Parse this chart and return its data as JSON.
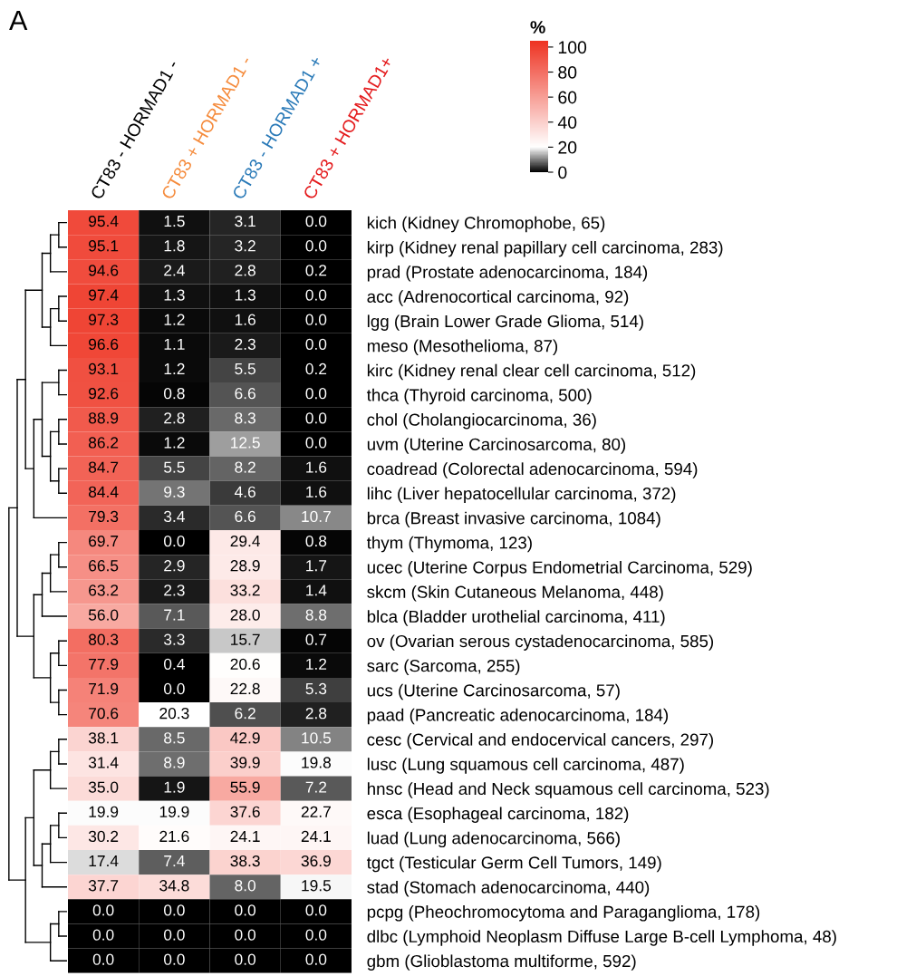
{
  "chart_data": {
    "type": "heatmap",
    "clabel": "%",
    "categories": [
      "CT83 - HORMAD1 -",
      "CT83 + HORMAD1 -",
      "CT83 - HORMAD1 +",
      "CT83 + HORMAD1+"
    ],
    "colors": [
      "#000000",
      "#f58b3c",
      "#2a7ab8",
      "#e41a1c"
    ],
    "y_categories": [
      "kich (Kidney Chromophobe, 65)",
      "kirp (Kidney renal papillary cell carcinoma, 283)",
      "prad (Prostate adenocarcinoma, 184)",
      "acc (Adrenocortical carcinoma, 92)",
      "lgg (Brain Lower Grade Glioma, 514)",
      "meso (Mesothelioma, 87)",
      "kirc (Kidney renal clear cell carcinoma, 512)",
      "thca (Thyroid carcinoma, 500)",
      "chol (Cholangiocarcinoma, 36)",
      "uvm (Uterine Carcinosarcoma, 80)",
      "coadread (Colorectal adenocarcinoma, 594)",
      "lihc (Liver hepatocellular carcinoma, 372)",
      "brca (Breast invasive carcinoma, 1084)",
      "thym (Thymoma, 123)",
      "ucec (Uterine Corpus Endometrial Carcinoma, 529)",
      "skcm (Skin Cutaneous Melanoma, 448)",
      "blca (Bladder urothelial carcinoma, 411)",
      "ov (Ovarian serous cystadenocarcinoma, 585)",
      "sarc (Sarcoma, 255)",
      "ucs (Uterine Carcinosarcoma, 57)",
      "paad (Pancreatic adenocarcinoma, 184)",
      "cesc (Cervical and endocervical cancers, 297)",
      "lusc (Lung squamous cell carcinoma, 487)",
      "hnsc (Head and Neck squamous cell carcinoma, 523)",
      "esca (Esophageal carcinoma, 182)",
      "luad (Lung adenocarcinoma, 566)",
      "tgct (Testicular Germ Cell Tumors, 149)",
      "stad (Stomach adenocarcinoma, 440)",
      "pcpg (Pheochromocytoma and Paraganglioma, 178)",
      "dlbc (Lymphoid Neoplasm Diffuse Large B-cell Lymphoma, 48)",
      "gbm (Glioblastoma multiforme, 592)"
    ],
    "cells": [
      [
        95.4,
        1.5,
        3.1,
        0.0
      ],
      [
        95.1,
        1.8,
        3.2,
        0.0
      ],
      [
        94.6,
        2.4,
        2.8,
        0.2
      ],
      [
        97.4,
        1.3,
        1.3,
        0.0
      ],
      [
        97.3,
        1.2,
        1.6,
        0.0
      ],
      [
        96.6,
        1.1,
        2.3,
        0.0
      ],
      [
        93.1,
        1.2,
        5.5,
        0.2
      ],
      [
        92.6,
        0.8,
        6.6,
        0.0
      ],
      [
        88.9,
        2.8,
        8.3,
        0.0
      ],
      [
        86.2,
        1.2,
        12.5,
        0.0
      ],
      [
        84.7,
        5.5,
        8.2,
        1.6
      ],
      [
        84.4,
        9.3,
        4.6,
        1.6
      ],
      [
        79.3,
        3.4,
        6.6,
        10.7
      ],
      [
        69.7,
        0.0,
        29.4,
        0.8
      ],
      [
        66.5,
        2.9,
        28.9,
        1.7
      ],
      [
        63.2,
        2.3,
        33.2,
        1.4
      ],
      [
        56.0,
        7.1,
        28.0,
        8.8
      ],
      [
        80.3,
        3.3,
        15.7,
        0.7
      ],
      [
        77.9,
        0.4,
        20.6,
        1.2
      ],
      [
        71.9,
        0.0,
        22.8,
        5.3
      ],
      [
        70.6,
        20.3,
        6.2,
        2.8
      ],
      [
        38.1,
        8.5,
        42.9,
        10.5
      ],
      [
        31.4,
        8.9,
        39.9,
        19.8
      ],
      [
        35.0,
        1.9,
        55.9,
        7.2
      ],
      [
        19.9,
        19.9,
        37.6,
        22.7
      ],
      [
        30.2,
        21.6,
        24.1,
        24.1
      ],
      [
        17.4,
        7.4,
        38.3,
        36.9
      ],
      [
        37.7,
        34.8,
        8.0,
        19.5
      ],
      [
        0.0,
        0.0,
        0.0,
        0.0
      ],
      [
        0.0,
        0.0,
        0.0,
        0.0
      ],
      [
        0.0,
        0.0,
        0.0,
        0.0
      ]
    ],
    "cell_labels": [
      [
        "95.4",
        "1.5",
        "3.1",
        "0.0"
      ],
      [
        "95.1",
        "1.8",
        "3.2",
        "0.0"
      ],
      [
        "94.6",
        "2.4",
        "2.8",
        "0.2"
      ],
      [
        "97.4",
        "1.3",
        "1.3",
        "0.0"
      ],
      [
        "97.3",
        "1.2",
        "1.6",
        "0.0"
      ],
      [
        "96.6",
        "1.1",
        "2.3",
        "0.0"
      ],
      [
        "93.1",
        "1.2",
        "5.5",
        "0.2"
      ],
      [
        "92.6",
        "0.8",
        "6.6",
        "0.0"
      ],
      [
        "88.9",
        "2.8",
        "8.3",
        "0.0"
      ],
      [
        "86.2",
        "1.2",
        "12.5",
        "0.0"
      ],
      [
        "84.7",
        "5.5",
        "8.2",
        "1.6"
      ],
      [
        "84.4",
        "9.3",
        "4.6",
        "1.6"
      ],
      [
        "79.3",
        "3.4",
        "6.6",
        "10.7"
      ],
      [
        "69.7",
        "0.0",
        "29.4",
        "0.8"
      ],
      [
        "66.5",
        "2.9",
        "28.9",
        "1.7"
      ],
      [
        "63.2",
        "2.3",
        "33.2",
        "1.4"
      ],
      [
        "56.0",
        "7.1",
        "28.0",
        "8.8"
      ],
      [
        "80.3",
        "3.3",
        "15.7",
        "0.7"
      ],
      [
        "77.9",
        "0.4",
        "20.6",
        "1.2"
      ],
      [
        "71.9",
        "0.0",
        "22.8",
        "5.3"
      ],
      [
        "70.6",
        "20.3",
        "6.2",
        "2.8"
      ],
      [
        "38.1",
        "8.5",
        "42.9",
        "10.5"
      ],
      [
        "31.4",
        "8.9",
        "39.9",
        "19.8"
      ],
      [
        "35.0",
        "1.9",
        "55.9",
        "7.2"
      ],
      [
        "19.9",
        "19.9",
        "37.6",
        "22.7"
      ],
      [
        "30.2",
        "21.6",
        "24.1",
        "24.1"
      ],
      [
        "17.4",
        "7.4",
        "38.3",
        "36.9"
      ],
      [
        "37.7",
        "34.8",
        "8.0",
        "19.5"
      ],
      [
        "0.0",
        "0.0",
        "0.0",
        "0.0"
      ],
      [
        "0.0",
        "0.0",
        "0.0",
        "0.0"
      ],
      [
        "0.0",
        "0.0",
        "0.0",
        "0.0"
      ]
    ],
    "clim": [
      0,
      105
    ],
    "cticks": [
      0,
      20,
      40,
      60,
      80,
      100
    ],
    "annotations": [
      "A"
    ]
  }
}
